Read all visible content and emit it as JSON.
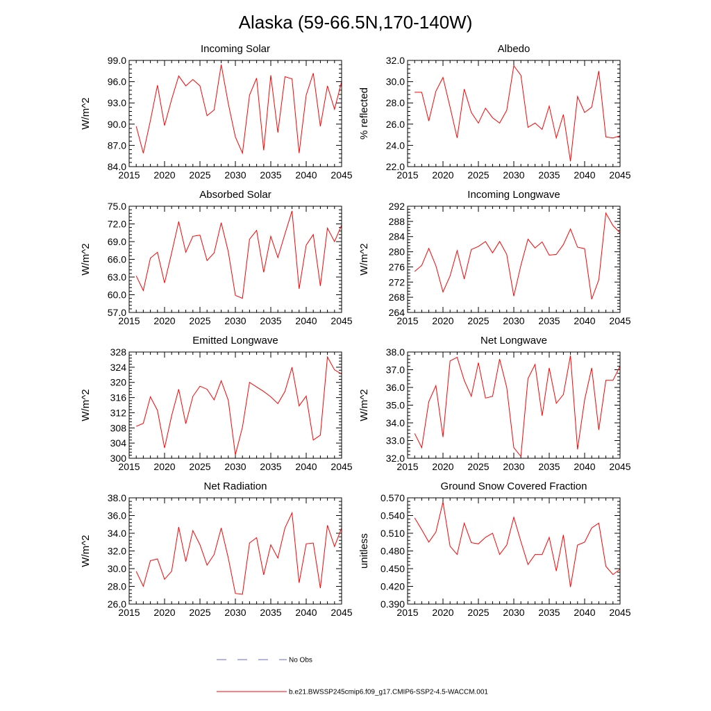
{
  "title": "Alaska (59-66.5N,170-140W)",
  "legend": {
    "obs_label": "No Obs",
    "obs_color": "#6a6ad8",
    "model_label": "b.e21.BWSSP245cmip6.f09_g17.CMIP6-SSP2-4.5-WACCM.001",
    "model_color": "#ff0000"
  },
  "chart_data": [
    {
      "type": "line",
      "title": "Incoming Solar",
      "ylabel": "W/m^2",
      "x_ticks": [
        "2015",
        "2020",
        "2025",
        "2030",
        "2035",
        "2040",
        "2045"
      ],
      "y_ticks": [
        "84.0",
        "87.0",
        "90.0",
        "93.0",
        "96.0",
        "99.0"
      ],
      "xlim": [
        2015,
        2045
      ],
      "ylim": [
        84,
        99
      ],
      "x": [
        2016,
        2017,
        2018,
        2019,
        2020,
        2021,
        2022,
        2023,
        2024,
        2025,
        2026,
        2027,
        2028,
        2029,
        2030,
        2031,
        2032,
        2033,
        2034,
        2035,
        2036,
        2037,
        2038,
        2039,
        2040,
        2041,
        2042,
        2043,
        2044,
        2045
      ],
      "values": [
        89.7,
        85.9,
        90.5,
        95.5,
        89.8,
        93.5,
        96.8,
        95.4,
        96.3,
        95.4,
        91.2,
        92.0,
        98.4,
        92.9,
        88.2,
        85.9,
        94.1,
        96.5,
        86.3,
        96.9,
        88.8,
        96.7,
        96.4,
        85.9,
        94.1,
        97.2,
        89.7,
        95.4,
        92.1,
        96.0
      ]
    },
    {
      "type": "line",
      "title": "Albedo",
      "ylabel": "% reflected",
      "x_ticks": [
        "2015",
        "2020",
        "2025",
        "2030",
        "2035",
        "2040",
        "2045"
      ],
      "y_ticks": [
        "22.0",
        "24.0",
        "26.0",
        "28.0",
        "30.0",
        "32.0"
      ],
      "xlim": [
        2015,
        2045
      ],
      "ylim": [
        22,
        32
      ],
      "x": [
        2016,
        2017,
        2018,
        2019,
        2020,
        2021,
        2022,
        2023,
        2024,
        2025,
        2026,
        2027,
        2028,
        2029,
        2030,
        2031,
        2032,
        2033,
        2034,
        2035,
        2036,
        2037,
        2038,
        2039,
        2040,
        2041,
        2042,
        2043,
        2044,
        2045
      ],
      "values": [
        29.0,
        29.0,
        26.3,
        29.1,
        30.4,
        27.6,
        24.7,
        29.3,
        27.1,
        26.1,
        27.5,
        26.6,
        26.1,
        27.3,
        31.5,
        30.6,
        25.7,
        26.1,
        25.5,
        27.7,
        24.7,
        26.9,
        22.5,
        28.6,
        27.1,
        27.6,
        31.0,
        24.8,
        24.7,
        24.9
      ]
    },
    {
      "type": "line",
      "title": "Absorbed Solar",
      "ylabel": "W/m^2",
      "x_ticks": [
        "2015",
        "2020",
        "2025",
        "2030",
        "2035",
        "2040",
        "2045"
      ],
      "y_ticks": [
        "57.0",
        "60.0",
        "63.0",
        "66.0",
        "69.0",
        "72.0",
        "75.0"
      ],
      "xlim": [
        2015,
        2045
      ],
      "ylim": [
        57,
        75
      ],
      "x": [
        2016,
        2017,
        2018,
        2019,
        2020,
        2021,
        2022,
        2023,
        2024,
        2025,
        2026,
        2027,
        2028,
        2029,
        2030,
        2031,
        2032,
        2033,
        2034,
        2035,
        2036,
        2037,
        2038,
        2039,
        2040,
        2041,
        2042,
        2043,
        2044,
        2045
      ],
      "values": [
        63.2,
        60.7,
        66.2,
        67.2,
        62.0,
        67.1,
        72.4,
        67.2,
        69.9,
        70.1,
        65.8,
        67.1,
        72.2,
        67.3,
        59.9,
        59.4,
        69.4,
        70.9,
        63.8,
        69.9,
        66.3,
        70.3,
        74.2,
        61.0,
        68.4,
        70.2,
        61.5,
        71.3,
        69.0,
        71.8
      ]
    },
    {
      "type": "line",
      "title": "Incoming Longwave",
      "ylabel": "W/m^2",
      "x_ticks": [
        "2015",
        "2020",
        "2025",
        "2030",
        "2035",
        "2040",
        "2045"
      ],
      "y_ticks": [
        "264",
        "268",
        "272",
        "276",
        "280",
        "284",
        "288",
        "292"
      ],
      "xlim": [
        2015,
        2045
      ],
      "ylim": [
        264,
        292
      ],
      "x": [
        2016,
        2017,
        2018,
        2019,
        2020,
        2021,
        2022,
        2023,
        2024,
        2025,
        2026,
        2027,
        2028,
        2029,
        2030,
        2031,
        2032,
        2033,
        2034,
        2035,
        2036,
        2037,
        2038,
        2039,
        2040,
        2041,
        2042,
        2043,
        2044,
        2045
      ],
      "values": [
        274.8,
        276.4,
        280.9,
        276.3,
        269.4,
        273.6,
        280.3,
        272.8,
        280.6,
        281.4,
        282.7,
        279.7,
        282.7,
        279.3,
        268.3,
        276.4,
        283.3,
        281.0,
        282.6,
        279.1,
        279.3,
        281.9,
        286.0,
        281.2,
        280.8,
        267.5,
        272.6,
        290.2,
        286.9,
        285.0
      ]
    },
    {
      "type": "line",
      "title": "Emitted Longwave",
      "ylabel": "W/m^2",
      "x_ticks": [
        "2015",
        "2020",
        "2025",
        "2030",
        "2035",
        "2040",
        "2045"
      ],
      "y_ticks": [
        "300",
        "304",
        "308",
        "312",
        "316",
        "320",
        "324",
        "328"
      ],
      "xlim": [
        2015,
        2045
      ],
      "ylim": [
        300,
        328
      ],
      "x": [
        2016,
        2017,
        2018,
        2019,
        2020,
        2021,
        2022,
        2023,
        2024,
        2025,
        2026,
        2027,
        2028,
        2029,
        2030,
        2031,
        2032,
        2033,
        2034,
        2035,
        2036,
        2037,
        2038,
        2039,
        2040,
        2041,
        2042,
        2043,
        2044,
        2045
      ],
      "values": [
        308.4,
        309.2,
        316.2,
        312.6,
        302.7,
        311.2,
        318.2,
        309.1,
        316.3,
        319.0,
        318.2,
        315.4,
        320.4,
        315.3,
        300.9,
        308.2,
        320.0,
        318.8,
        317.6,
        316.2,
        314.4,
        317.6,
        324.0,
        313.8,
        316.4,
        304.8,
        306.1,
        326.7,
        323.3,
        322.2
      ]
    },
    {
      "type": "line",
      "title": "Net Longwave",
      "ylabel": "W/m^2",
      "x_ticks": [
        "2015",
        "2020",
        "2025",
        "2030",
        "2035",
        "2040",
        "2045"
      ],
      "y_ticks": [
        "32.0",
        "33.0",
        "34.0",
        "35.0",
        "36.0",
        "37.0",
        "38.0"
      ],
      "xlim": [
        2015,
        2045
      ],
      "ylim": [
        32,
        38
      ],
      "x": [
        2016,
        2017,
        2018,
        2019,
        2020,
        2021,
        2022,
        2023,
        2024,
        2025,
        2026,
        2027,
        2028,
        2029,
        2030,
        2031,
        2032,
        2033,
        2034,
        2035,
        2036,
        2037,
        2038,
        2039,
        2040,
        2041,
        2042,
        2043,
        2044,
        2045
      ],
      "values": [
        33.4,
        32.6,
        35.2,
        36.1,
        33.2,
        37.5,
        37.7,
        36.4,
        35.5,
        37.4,
        35.4,
        35.5,
        37.6,
        36.0,
        32.6,
        32.1,
        36.5,
        37.3,
        34.4,
        37.1,
        35.1,
        35.6,
        37.8,
        32.5,
        35.3,
        37.1,
        33.6,
        36.4,
        36.4,
        37.2
      ]
    },
    {
      "type": "line",
      "title": "Net Radiation",
      "ylabel": "W/m^2",
      "x_ticks": [
        "2015",
        "2020",
        "2025",
        "2030",
        "2035",
        "2040",
        "2045"
      ],
      "y_ticks": [
        "26.0",
        "28.0",
        "30.0",
        "32.0",
        "34.0",
        "36.0",
        "38.0"
      ],
      "xlim": [
        2015,
        2045
      ],
      "ylim": [
        26,
        38
      ],
      "x": [
        2016,
        2017,
        2018,
        2019,
        2020,
        2021,
        2022,
        2023,
        2024,
        2025,
        2026,
        2027,
        2028,
        2029,
        2030,
        2031,
        2032,
        2033,
        2034,
        2035,
        2036,
        2037,
        2038,
        2039,
        2040,
        2041,
        2042,
        2043,
        2044,
        2045
      ],
      "values": [
        29.7,
        28.0,
        30.9,
        31.1,
        28.8,
        29.7,
        34.7,
        30.8,
        34.3,
        32.7,
        30.4,
        31.6,
        34.6,
        31.2,
        27.2,
        27.1,
        32.9,
        33.5,
        29.3,
        32.7,
        31.2,
        34.6,
        36.3,
        28.4,
        32.8,
        32.9,
        27.8,
        34.9,
        32.5,
        34.6
      ]
    },
    {
      "type": "line",
      "title": "Ground Snow Covered Fraction",
      "ylabel": "unitless",
      "x_ticks": [
        "2015",
        "2020",
        "2025",
        "2030",
        "2035",
        "2040",
        "2045"
      ],
      "y_ticks": [
        "0.390",
        "0.420",
        "0.450",
        "0.480",
        "0.510",
        "0.540",
        "0.570"
      ],
      "xlim": [
        2015,
        2045
      ],
      "ylim": [
        0.39,
        0.57
      ],
      "x": [
        2016,
        2017,
        2018,
        2019,
        2020,
        2021,
        2022,
        2023,
        2024,
        2025,
        2026,
        2027,
        2028,
        2029,
        2030,
        2031,
        2032,
        2033,
        2034,
        2035,
        2036,
        2037,
        2038,
        2039,
        2040,
        2041,
        2042,
        2043,
        2044,
        2045
      ],
      "values": [
        0.536,
        0.516,
        0.495,
        0.512,
        0.563,
        0.488,
        0.474,
        0.527,
        0.494,
        0.492,
        0.503,
        0.51,
        0.474,
        0.49,
        0.537,
        0.496,
        0.457,
        0.474,
        0.474,
        0.503,
        0.446,
        0.507,
        0.419,
        0.49,
        0.495,
        0.519,
        0.527,
        0.454,
        0.44,
        0.449
      ]
    }
  ]
}
